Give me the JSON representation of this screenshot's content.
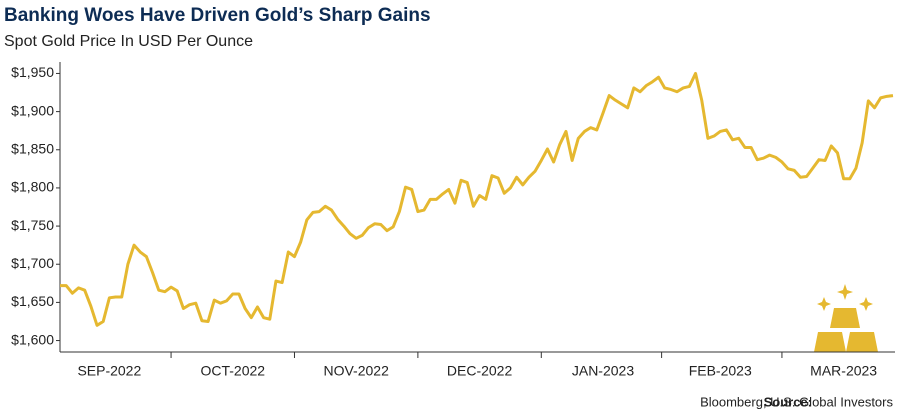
{
  "chart_data": {
    "type": "line",
    "title": "Banking Woes Have Driven Gold’s Sharp Gains",
    "subtitle": "Spot Gold Price In USD Per Ounce",
    "source_label": "Source:",
    "source_text": "Bloomberg, U.S. Global Investors",
    "categories": [
      null,
      null,
      null,
      null,
      null,
      null,
      null,
      null,
      "SEP-2022",
      null,
      null,
      null,
      null,
      null,
      null,
      null,
      null,
      null,
      null,
      null,
      null,
      null,
      null,
      null,
      null,
      null,
      null,
      null,
      "OCT-2022",
      null,
      null,
      null,
      null,
      null,
      null,
      null,
      null,
      null,
      null,
      null,
      null,
      null,
      null,
      null,
      null,
      null,
      null,
      null,
      "NOV-2022",
      null,
      null,
      null,
      null,
      null,
      null,
      null,
      null,
      null,
      null,
      null,
      null,
      null,
      null,
      null,
      null,
      null,
      null,
      null,
      "DEC-2022",
      null,
      null,
      null,
      null,
      null,
      null,
      null,
      null,
      null,
      null,
      null,
      null,
      null,
      null,
      null,
      null,
      null,
      null,
      null,
      "JAN-2023",
      null,
      null,
      null,
      null,
      null,
      null,
      null,
      null,
      null,
      null,
      null,
      null,
      null,
      null,
      null,
      null,
      null,
      null,
      "FEB-2023",
      null,
      null,
      null,
      null,
      null,
      null,
      null,
      null,
      null,
      null,
      null,
      null,
      null,
      null,
      null,
      null,
      null,
      null,
      null,
      "MAR-2023",
      null,
      null,
      null,
      null,
      null,
      null,
      null,
      null
    ],
    "series": [
      {
        "name": "Spot Gold",
        "color": "#e5b830",
        "values": [
          1672,
          1672,
          1662,
          1669,
          1666,
          1645,
          1620,
          1625,
          1656,
          1657,
          1657,
          1700,
          1725,
          1716,
          1710,
          1689,
          1666,
          1664,
          1670,
          1665,
          1642,
          1647,
          1649,
          1626,
          1625,
          1653,
          1649,
          1652,
          1661,
          1661,
          1642,
          1630,
          1644,
          1630,
          1628,
          1678,
          1676,
          1716,
          1710,
          1729,
          1758,
          1768,
          1769,
          1776,
          1771,
          1759,
          1750,
          1740,
          1734,
          1738,
          1748,
          1753,
          1752,
          1744,
          1749,
          1769,
          1801,
          1798,
          1769,
          1771,
          1785,
          1785,
          1792,
          1798,
          1780,
          1810,
          1807,
          1776,
          1790,
          1785,
          1816,
          1813,
          1793,
          1800,
          1814,
          1804,
          1814,
          1822,
          1836,
          1851,
          1834,
          1857,
          1874,
          1836,
          1865,
          1874,
          1879,
          1876,
          1898,
          1921,
          1915,
          1910,
          1905,
          1931,
          1926,
          1934,
          1939,
          1945,
          1931,
          1929,
          1926,
          1931,
          1933,
          1950,
          1915,
          1865,
          1868,
          1874,
          1876,
          1863,
          1865,
          1853,
          1853,
          1837,
          1839,
          1843,
          1840,
          1834,
          1825,
          1823,
          1814,
          1815,
          1826,
          1837,
          1836,
          1855,
          1846,
          1812,
          1812,
          1826,
          1859,
          1914,
          1905,
          1918,
          1920,
          1921
        ]
      }
    ],
    "ylim": [
      1585,
      1965
    ],
    "yticks": [
      {
        "value": 1600,
        "label": "$1,600"
      },
      {
        "value": 1650,
        "label": "$1,650"
      },
      {
        "value": 1700,
        "label": "$1,700"
      },
      {
        "value": 1750,
        "label": "$1,750"
      },
      {
        "value": 1800,
        "label": "$1,800"
      },
      {
        "value": 1850,
        "label": "$1,850"
      },
      {
        "value": 1900,
        "label": "$1,900"
      },
      {
        "value": 1950,
        "label": "$1,950"
      }
    ],
    "grid": false
  }
}
